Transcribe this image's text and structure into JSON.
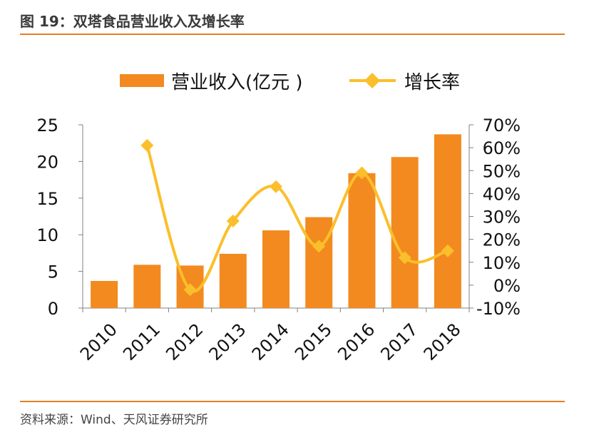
{
  "figure": {
    "title": "图 19：双塔食品营业收入及增长率",
    "source": "资料来源：Wind、天风证券研究所"
  },
  "colors": {
    "bar": "#f28a1f",
    "line": "#fbbf2b",
    "rule": "#e67e22",
    "axis": "#808080"
  },
  "chart_data": {
    "type": "bar",
    "categories": [
      "2010",
      "2011",
      "2012",
      "2013",
      "2014",
      "2015",
      "2016",
      "2017",
      "2018"
    ],
    "series": [
      {
        "name": "营业收入(亿元 )",
        "type": "bar",
        "axis": "left",
        "values": [
          3.7,
          5.9,
          5.8,
          7.4,
          10.6,
          12.4,
          18.4,
          20.6,
          23.7
        ]
      },
      {
        "name": "增长率",
        "type": "line",
        "axis": "right",
        "values": [
          null,
          61,
          -2,
          28,
          43,
          17,
          49,
          12,
          15
        ]
      }
    ],
    "ylim_left": [
      0,
      25
    ],
    "yticks_left": [
      "0",
      "5",
      "10",
      "15",
      "20",
      "25"
    ],
    "ylim_right": [
      -10,
      70
    ],
    "yticks_right": [
      "-10%",
      "0%",
      "10%",
      "20%",
      "30%",
      "40%",
      "50%",
      "60%",
      "70%"
    ],
    "legend": [
      "营业收入(亿元 )",
      "增长率"
    ],
    "legend_position": "top"
  }
}
